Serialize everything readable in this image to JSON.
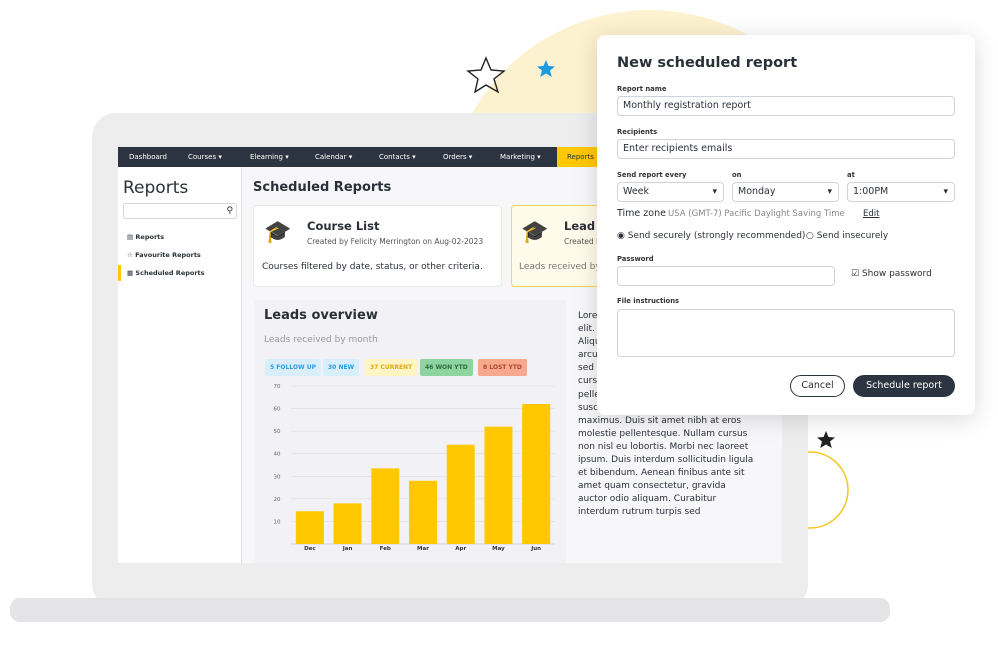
{
  "nav": [
    "Dashboard",
    "Courses",
    "Elearning",
    "Calendar",
    "Contacts",
    "Orders",
    "Marketing",
    "Reports"
  ],
  "sidebar": {
    "title": "Reports",
    "items": [
      "Reports",
      "Favourite Reports",
      "Scheduled Reports"
    ]
  },
  "main": {
    "title": "Scheduled Reports",
    "cards": [
      {
        "title": "Course List",
        "meta": "Created by Felicity Merrington on Aug-02-2023",
        "description": "Courses filtered by date, status, or other criteria."
      },
      {
        "title": "Lead overview",
        "meta": "Created by",
        "description": "Leads received by month"
      }
    ]
  },
  "leads": {
    "title": "Leads overview",
    "subtitle": "Leads received by month",
    "badges": [
      "5 FOLLOW UP",
      "30 NEW",
      "37 CURRENT",
      "46 WON YTD",
      "8 LOST YTD"
    ],
    "chart": {
      "type": "bar",
      "categories": [
        "Dec",
        "Jan",
        "Feb",
        "Mar",
        "Apr",
        "May",
        "Jun"
      ],
      "values": [
        14.5,
        18,
        33.5,
        28,
        44,
        52,
        62
      ],
      "color": "#ffc800",
      "ylim": [
        0,
        70
      ],
      "yticks": [
        10,
        20,
        30,
        40,
        50,
        60,
        70
      ],
      "grid": true
    }
  },
  "side_text": "Lorem ipsum dolor sit amet, adipiscing elit. Sed sit amet pellentesque lorem. Aliquam erat volutpat. Nulla massa arcu, tincidunt vel eleifend at, ultricies sed enim. Praesent commodo vitae cursus risus. Proin scelerisque pellentesque velit non facilisis. Donec suscipit purus sit amet nisl congue maximus. Duis sit amet nibh at eros molestie pellentesque. Nullam cursus non nisl eu lobortis. Morbi nec laoreet ipsum. Duis interdum sollicitudin ligula et bibendum. Aenean finibus ante sit amet quam consectetur, gravida auctor odio aliquam. Curabitur interdum rutrum turpis sed",
  "dialog": {
    "title": "New scheduled report",
    "report_name": {
      "label": "Report name",
      "value": "Monthly registration report"
    },
    "recipients": {
      "label": "Recipients",
      "placeholder": "Enter recipients emails"
    },
    "every": {
      "label": "Send report every",
      "value": "Week"
    },
    "on": {
      "label": "on",
      "value": "Monday"
    },
    "at": {
      "label": "at",
      "value": "1:00PM"
    },
    "timezone": {
      "label": "Time zone",
      "value": "USA (GMT-7) Pacific Daylight Saving Time",
      "action": "Edit"
    },
    "security": [
      "Send securely (strongly recommended)",
      "Send insecurely"
    ],
    "password": {
      "label": "Password",
      "show": "Show password"
    },
    "file_instructions": {
      "label": "File instructions"
    },
    "buttons": [
      "Cancel",
      "Schedule report"
    ]
  }
}
